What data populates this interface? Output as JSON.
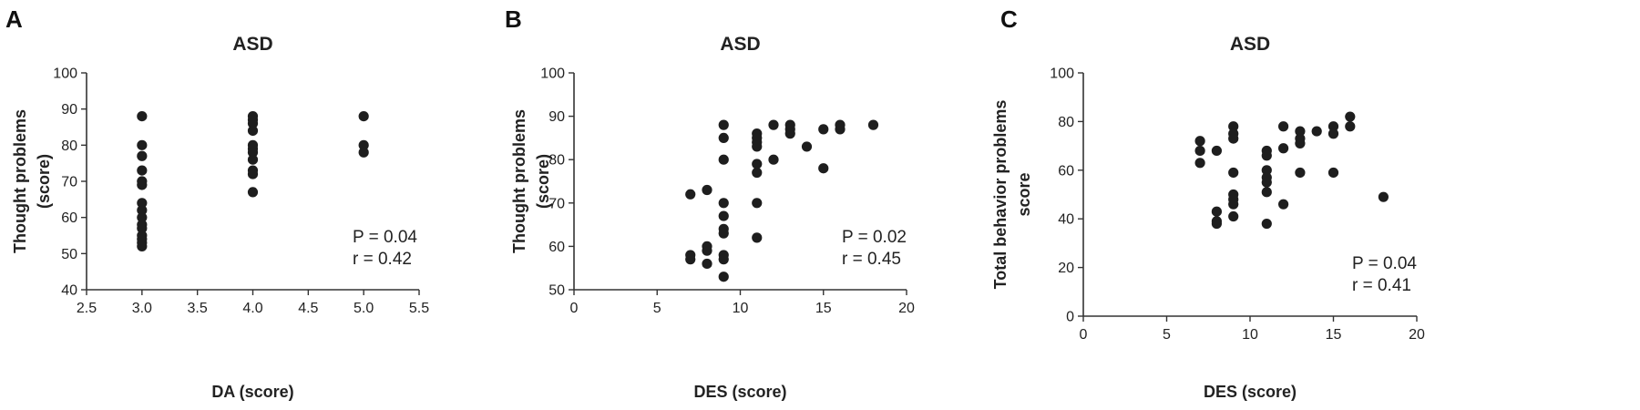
{
  "chart_data": [
    {
      "type": "scatter",
      "panel_letter": "A",
      "title": "ASD",
      "xlabel": "DA (score)",
      "ylabel": [
        "Thought problems",
        "(score)"
      ],
      "xlim": [
        2.5,
        5.5
      ],
      "ylim": [
        40,
        100
      ],
      "xticks": [
        "2.5",
        "3.0",
        "3.5",
        "4.0",
        "4.5",
        "5.0",
        "5.5"
      ],
      "yticks": [
        "40",
        "50",
        "60",
        "70",
        "80",
        "90",
        "100"
      ],
      "annotations": [
        "P = 0.04",
        "r = 0.42"
      ],
      "points": [
        [
          3.0,
          88
        ],
        [
          3.0,
          80
        ],
        [
          3.0,
          77
        ],
        [
          3.0,
          73
        ],
        [
          3.0,
          70
        ],
        [
          3.0,
          69
        ],
        [
          3.0,
          64
        ],
        [
          3.0,
          62
        ],
        [
          3.0,
          60
        ],
        [
          3.0,
          58
        ],
        [
          3.0,
          57
        ],
        [
          3.0,
          55
        ],
        [
          3.0,
          54
        ],
        [
          3.0,
          53
        ],
        [
          3.0,
          52
        ],
        [
          4.0,
          88
        ],
        [
          4.0,
          87
        ],
        [
          4.0,
          86
        ],
        [
          4.0,
          84
        ],
        [
          4.0,
          80
        ],
        [
          4.0,
          79
        ],
        [
          4.0,
          78
        ],
        [
          4.0,
          76
        ],
        [
          4.0,
          73
        ],
        [
          4.0,
          72
        ],
        [
          4.0,
          67
        ],
        [
          5.0,
          88
        ],
        [
          5.0,
          80
        ],
        [
          5.0,
          78
        ]
      ]
    },
    {
      "type": "scatter",
      "panel_letter": "B",
      "title": "ASD",
      "xlabel": "DES (score)",
      "ylabel": [
        "Thought problems",
        "(score)"
      ],
      "xlim": [
        0,
        20
      ],
      "ylim": [
        50,
        100
      ],
      "xticks": [
        "0",
        "5",
        "10",
        "15",
        "20"
      ],
      "yticks": [
        "50",
        "60",
        "70",
        "80",
        "90",
        "100"
      ],
      "annotations": [
        "P = 0.02",
        "r = 0.45"
      ],
      "points": [
        [
          7,
          72
        ],
        [
          7,
          58
        ],
        [
          7,
          57
        ],
        [
          8,
          73
        ],
        [
          8,
          60
        ],
        [
          8,
          59
        ],
        [
          8,
          56
        ],
        [
          9,
          88
        ],
        [
          9,
          85
        ],
        [
          9,
          80
        ],
        [
          9,
          70
        ],
        [
          9,
          67
        ],
        [
          9,
          64
        ],
        [
          9,
          63
        ],
        [
          9,
          58
        ],
        [
          9,
          57
        ],
        [
          9,
          53
        ],
        [
          11,
          86
        ],
        [
          11,
          85
        ],
        [
          11,
          84
        ],
        [
          11,
          83
        ],
        [
          11,
          79
        ],
        [
          11,
          77
        ],
        [
          11,
          70
        ],
        [
          11,
          62
        ],
        [
          12,
          88
        ],
        [
          12,
          80
        ],
        [
          13,
          88
        ],
        [
          13,
          87
        ],
        [
          13,
          86
        ],
        [
          14,
          83
        ],
        [
          15,
          87
        ],
        [
          15,
          78
        ],
        [
          16,
          88
        ],
        [
          16,
          87
        ],
        [
          18,
          88
        ]
      ]
    },
    {
      "type": "scatter",
      "panel_letter": "C",
      "title": "ASD",
      "xlabel": "DES (score)",
      "ylabel": [
        "Total behavior problems",
        "score"
      ],
      "xlim": [
        0,
        20
      ],
      "ylim": [
        0,
        100
      ],
      "xticks": [
        "0",
        "5",
        "10",
        "15",
        "20"
      ],
      "yticks": [
        "0",
        "20",
        "40",
        "60",
        "80",
        "100"
      ],
      "annotations": [
        "P = 0.04",
        "r = 0.41"
      ],
      "points": [
        [
          7,
          72
        ],
        [
          7,
          68
        ],
        [
          7,
          63
        ],
        [
          8,
          68
        ],
        [
          8,
          43
        ],
        [
          8,
          39
        ],
        [
          8,
          38
        ],
        [
          9,
          78
        ],
        [
          9,
          75
        ],
        [
          9,
          73
        ],
        [
          9,
          59
        ],
        [
          9,
          50
        ],
        [
          9,
          48
        ],
        [
          9,
          46
        ],
        [
          9,
          41
        ],
        [
          11,
          68
        ],
        [
          11,
          66
        ],
        [
          11,
          60
        ],
        [
          11,
          57
        ],
        [
          11,
          55
        ],
        [
          11,
          51
        ],
        [
          11,
          38
        ],
        [
          12,
          78
        ],
        [
          12,
          69
        ],
        [
          12,
          46
        ],
        [
          13,
          76
        ],
        [
          13,
          73
        ],
        [
          13,
          71
        ],
        [
          13,
          59
        ],
        [
          14,
          76
        ],
        [
          15,
          78
        ],
        [
          15,
          75
        ],
        [
          15,
          59
        ],
        [
          16,
          82
        ],
        [
          16,
          78
        ],
        [
          18,
          49
        ]
      ]
    }
  ]
}
